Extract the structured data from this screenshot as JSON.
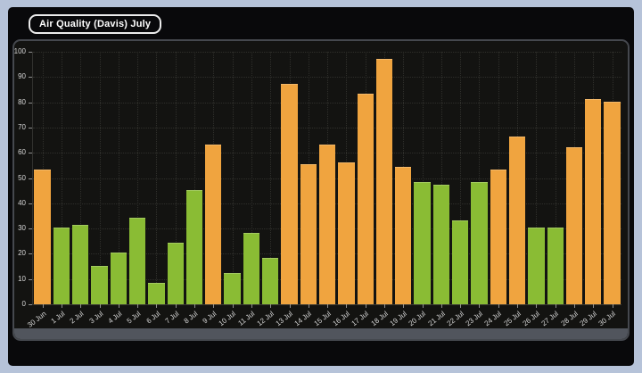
{
  "window": {
    "title_pill": "Air Quality (Davis) July"
  },
  "colors": {
    "page_bg": "#b6c3d9",
    "window_bg": "#09090b",
    "card_bg": "#131311",
    "card_border": "#45484e",
    "scrollbar": "#51555d",
    "grid": "#2f2f2b",
    "axis_text": "#d6d6d6",
    "bar_good_green": "#8abc34",
    "bar_moderate_orange": "#f0a43f"
  },
  "chart_data": {
    "type": "bar",
    "title": "Air Quality (Davis) July",
    "xlabel": "",
    "ylabel": "",
    "ylim": [
      0,
      100
    ],
    "ytick_step": 10,
    "grid": "dotted",
    "legend_position": "top-left",
    "categories": [
      "30 Jun",
      "1 Jul",
      "2 Jul",
      "3 Jul",
      "4 Jul",
      "5 Jul",
      "6 Jul",
      "7 Jul",
      "8 Jul",
      "9 Jul",
      "10 Jul",
      "11 Jul",
      "12 Jul",
      "13 Jul",
      "14 Jul",
      "15 Jul",
      "16 Jul",
      "17 Jul",
      "18 Jul",
      "19 Jul",
      "20 Jul",
      "21 Jul",
      "22 Jul",
      "23 Jul",
      "24 Jul",
      "25 Jul",
      "26 Jul",
      "27 Jul",
      "28 Jul",
      "29 Jul",
      "30 Jul"
    ],
    "values": [
      53,
      30,
      31,
      15,
      20,
      34,
      8,
      24,
      45,
      63,
      12,
      28,
      18,
      87,
      55,
      63,
      56,
      83,
      97,
      54,
      48,
      47,
      33,
      48,
      53,
      66,
      30,
      30,
      62,
      81,
      80
    ],
    "bar_colors": [
      "orange",
      "green",
      "green",
      "green",
      "green",
      "green",
      "green",
      "green",
      "green",
      "orange",
      "green",
      "green",
      "green",
      "orange",
      "orange",
      "orange",
      "orange",
      "orange",
      "orange",
      "orange",
      "green",
      "green",
      "green",
      "green",
      "orange",
      "orange",
      "green",
      "green",
      "orange",
      "orange",
      "orange"
    ],
    "color_rule": "green if value <= 50, orange if value > 50"
  }
}
